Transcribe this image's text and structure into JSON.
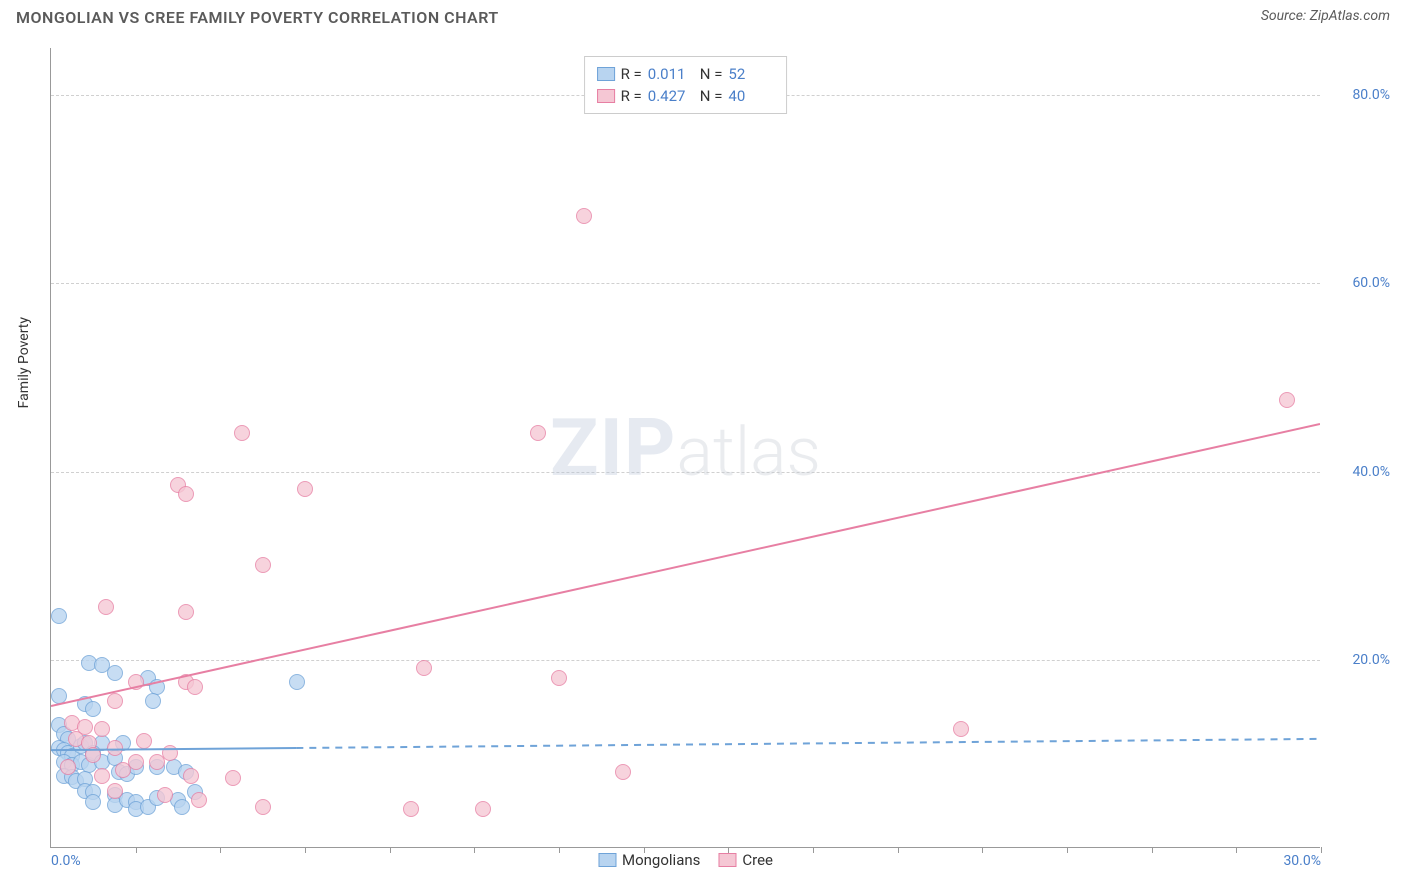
{
  "header": {
    "title": "MONGOLIAN VS CREE FAMILY POVERTY CORRELATION CHART",
    "source_prefix": "Source: ",
    "source_name": "ZipAtlas.com"
  },
  "chart": {
    "type": "scatter",
    "xlim": [
      0,
      30
    ],
    "ylim": [
      0,
      85
    ],
    "x_tick_step": 2,
    "x_tick_labels": [
      {
        "val": 0,
        "label": "0.0%"
      },
      {
        "val": 30,
        "label": "30.0%"
      }
    ],
    "y_ticks": [
      {
        "val": 20,
        "label": "20.0%"
      },
      {
        "val": 40,
        "label": "40.0%"
      },
      {
        "val": 60,
        "label": "60.0%"
      },
      {
        "val": 80,
        "label": "80.0%"
      }
    ],
    "y_axis_title": "Family Poverty",
    "background_color": "#ffffff",
    "grid_color": "#d0d0d0",
    "axis_color": "#999999",
    "tick_label_color": "#4a7fc9",
    "series": [
      {
        "name": "Mongolians",
        "color_fill": "#b8d4f0",
        "color_stroke": "#6fa3d8",
        "marker_radius": 8,
        "r_value": "0.011",
        "n_value": "52",
        "trend": {
          "x1": 0,
          "y1": 10.3,
          "x2": 30,
          "y2": 11.5,
          "solid_until_x": 5.8
        },
        "points": [
          [
            0.2,
            24.5
          ],
          [
            0.9,
            19.5
          ],
          [
            1.2,
            19.3
          ],
          [
            0.2,
            16.0
          ],
          [
            0.8,
            15.2
          ],
          [
            1.0,
            14.7
          ],
          [
            1.5,
            18.5
          ],
          [
            2.3,
            18.0
          ],
          [
            2.5,
            17.0
          ],
          [
            2.4,
            15.5
          ],
          [
            5.8,
            17.5
          ],
          [
            0.2,
            13.0
          ],
          [
            0.3,
            12.0
          ],
          [
            0.4,
            11.5
          ],
          [
            0.2,
            10.5
          ],
          [
            0.3,
            10.3
          ],
          [
            0.4,
            10.0
          ],
          [
            0.5,
            9.7
          ],
          [
            0.7,
            10.7
          ],
          [
            0.8,
            11.0
          ],
          [
            1.2,
            11.0
          ],
          [
            1.7,
            11.0
          ],
          [
            0.3,
            9.0
          ],
          [
            0.5,
            8.7
          ],
          [
            0.7,
            9.0
          ],
          [
            0.9,
            8.7
          ],
          [
            0.3,
            7.5
          ],
          [
            0.5,
            7.4
          ],
          [
            0.6,
            7.0
          ],
          [
            0.8,
            7.2
          ],
          [
            1.0,
            10.0
          ],
          [
            1.2,
            9.0
          ],
          [
            1.5,
            9.5
          ],
          [
            1.6,
            8.0
          ],
          [
            1.8,
            7.8
          ],
          [
            2.0,
            8.5
          ],
          [
            2.5,
            8.5
          ],
          [
            2.9,
            8.5
          ],
          [
            0.8,
            6.0
          ],
          [
            1.0,
            5.8
          ],
          [
            1.0,
            4.8
          ],
          [
            1.5,
            5.5
          ],
          [
            1.5,
            4.5
          ],
          [
            1.8,
            5.0
          ],
          [
            2.0,
            4.8
          ],
          [
            2.0,
            4.0
          ],
          [
            2.3,
            4.2
          ],
          [
            2.5,
            5.2
          ],
          [
            3.0,
            5.0
          ],
          [
            3.1,
            4.3
          ],
          [
            3.4,
            5.8
          ],
          [
            3.2,
            8.0
          ]
        ]
      },
      {
        "name": "Cree",
        "color_fill": "#f5c7d4",
        "color_stroke": "#e77fa3",
        "marker_radius": 8,
        "r_value": "0.427",
        "n_value": "40",
        "trend": {
          "x1": 0,
          "y1": 15.0,
          "x2": 30,
          "y2": 45.0,
          "solid_until_x": 30
        },
        "points": [
          [
            12.6,
            67.0
          ],
          [
            29.2,
            47.5
          ],
          [
            4.5,
            44.0
          ],
          [
            11.5,
            44.0
          ],
          [
            3.0,
            38.5
          ],
          [
            3.2,
            37.5
          ],
          [
            6.0,
            38.0
          ],
          [
            5.0,
            30.0
          ],
          [
            1.3,
            25.5
          ],
          [
            3.2,
            25.0
          ],
          [
            8.8,
            19.0
          ],
          [
            12.0,
            18.0
          ],
          [
            2.0,
            17.5
          ],
          [
            3.2,
            17.5
          ],
          [
            3.4,
            17.0
          ],
          [
            1.5,
            15.5
          ],
          [
            21.5,
            12.5
          ],
          [
            0.5,
            13.2
          ],
          [
            0.8,
            12.8
          ],
          [
            1.2,
            12.5
          ],
          [
            0.6,
            11.5
          ],
          [
            0.9,
            11.0
          ],
          [
            1.0,
            9.8
          ],
          [
            1.5,
            10.5
          ],
          [
            2.2,
            11.3
          ],
          [
            2.8,
            10.0
          ],
          [
            2.5,
            9.0
          ],
          [
            0.4,
            8.5
          ],
          [
            1.2,
            7.5
          ],
          [
            1.7,
            8.2
          ],
          [
            3.3,
            7.5
          ],
          [
            4.3,
            7.3
          ],
          [
            13.5,
            8.0
          ],
          [
            8.5,
            4.0
          ],
          [
            10.2,
            4.0
          ],
          [
            5.0,
            4.3
          ],
          [
            1.5,
            6.0
          ],
          [
            2.7,
            5.5
          ],
          [
            3.5,
            5.0
          ],
          [
            2.0,
            9.0
          ]
        ]
      }
    ],
    "legend_bottom": [
      {
        "name": "Mongolians",
        "fill": "#b8d4f0",
        "stroke": "#6fa3d8"
      },
      {
        "name": "Cree",
        "fill": "#f5c7d4",
        "stroke": "#e77fa3"
      }
    ],
    "watermark": {
      "zip": "ZIP",
      "atlas": "atlas"
    }
  }
}
